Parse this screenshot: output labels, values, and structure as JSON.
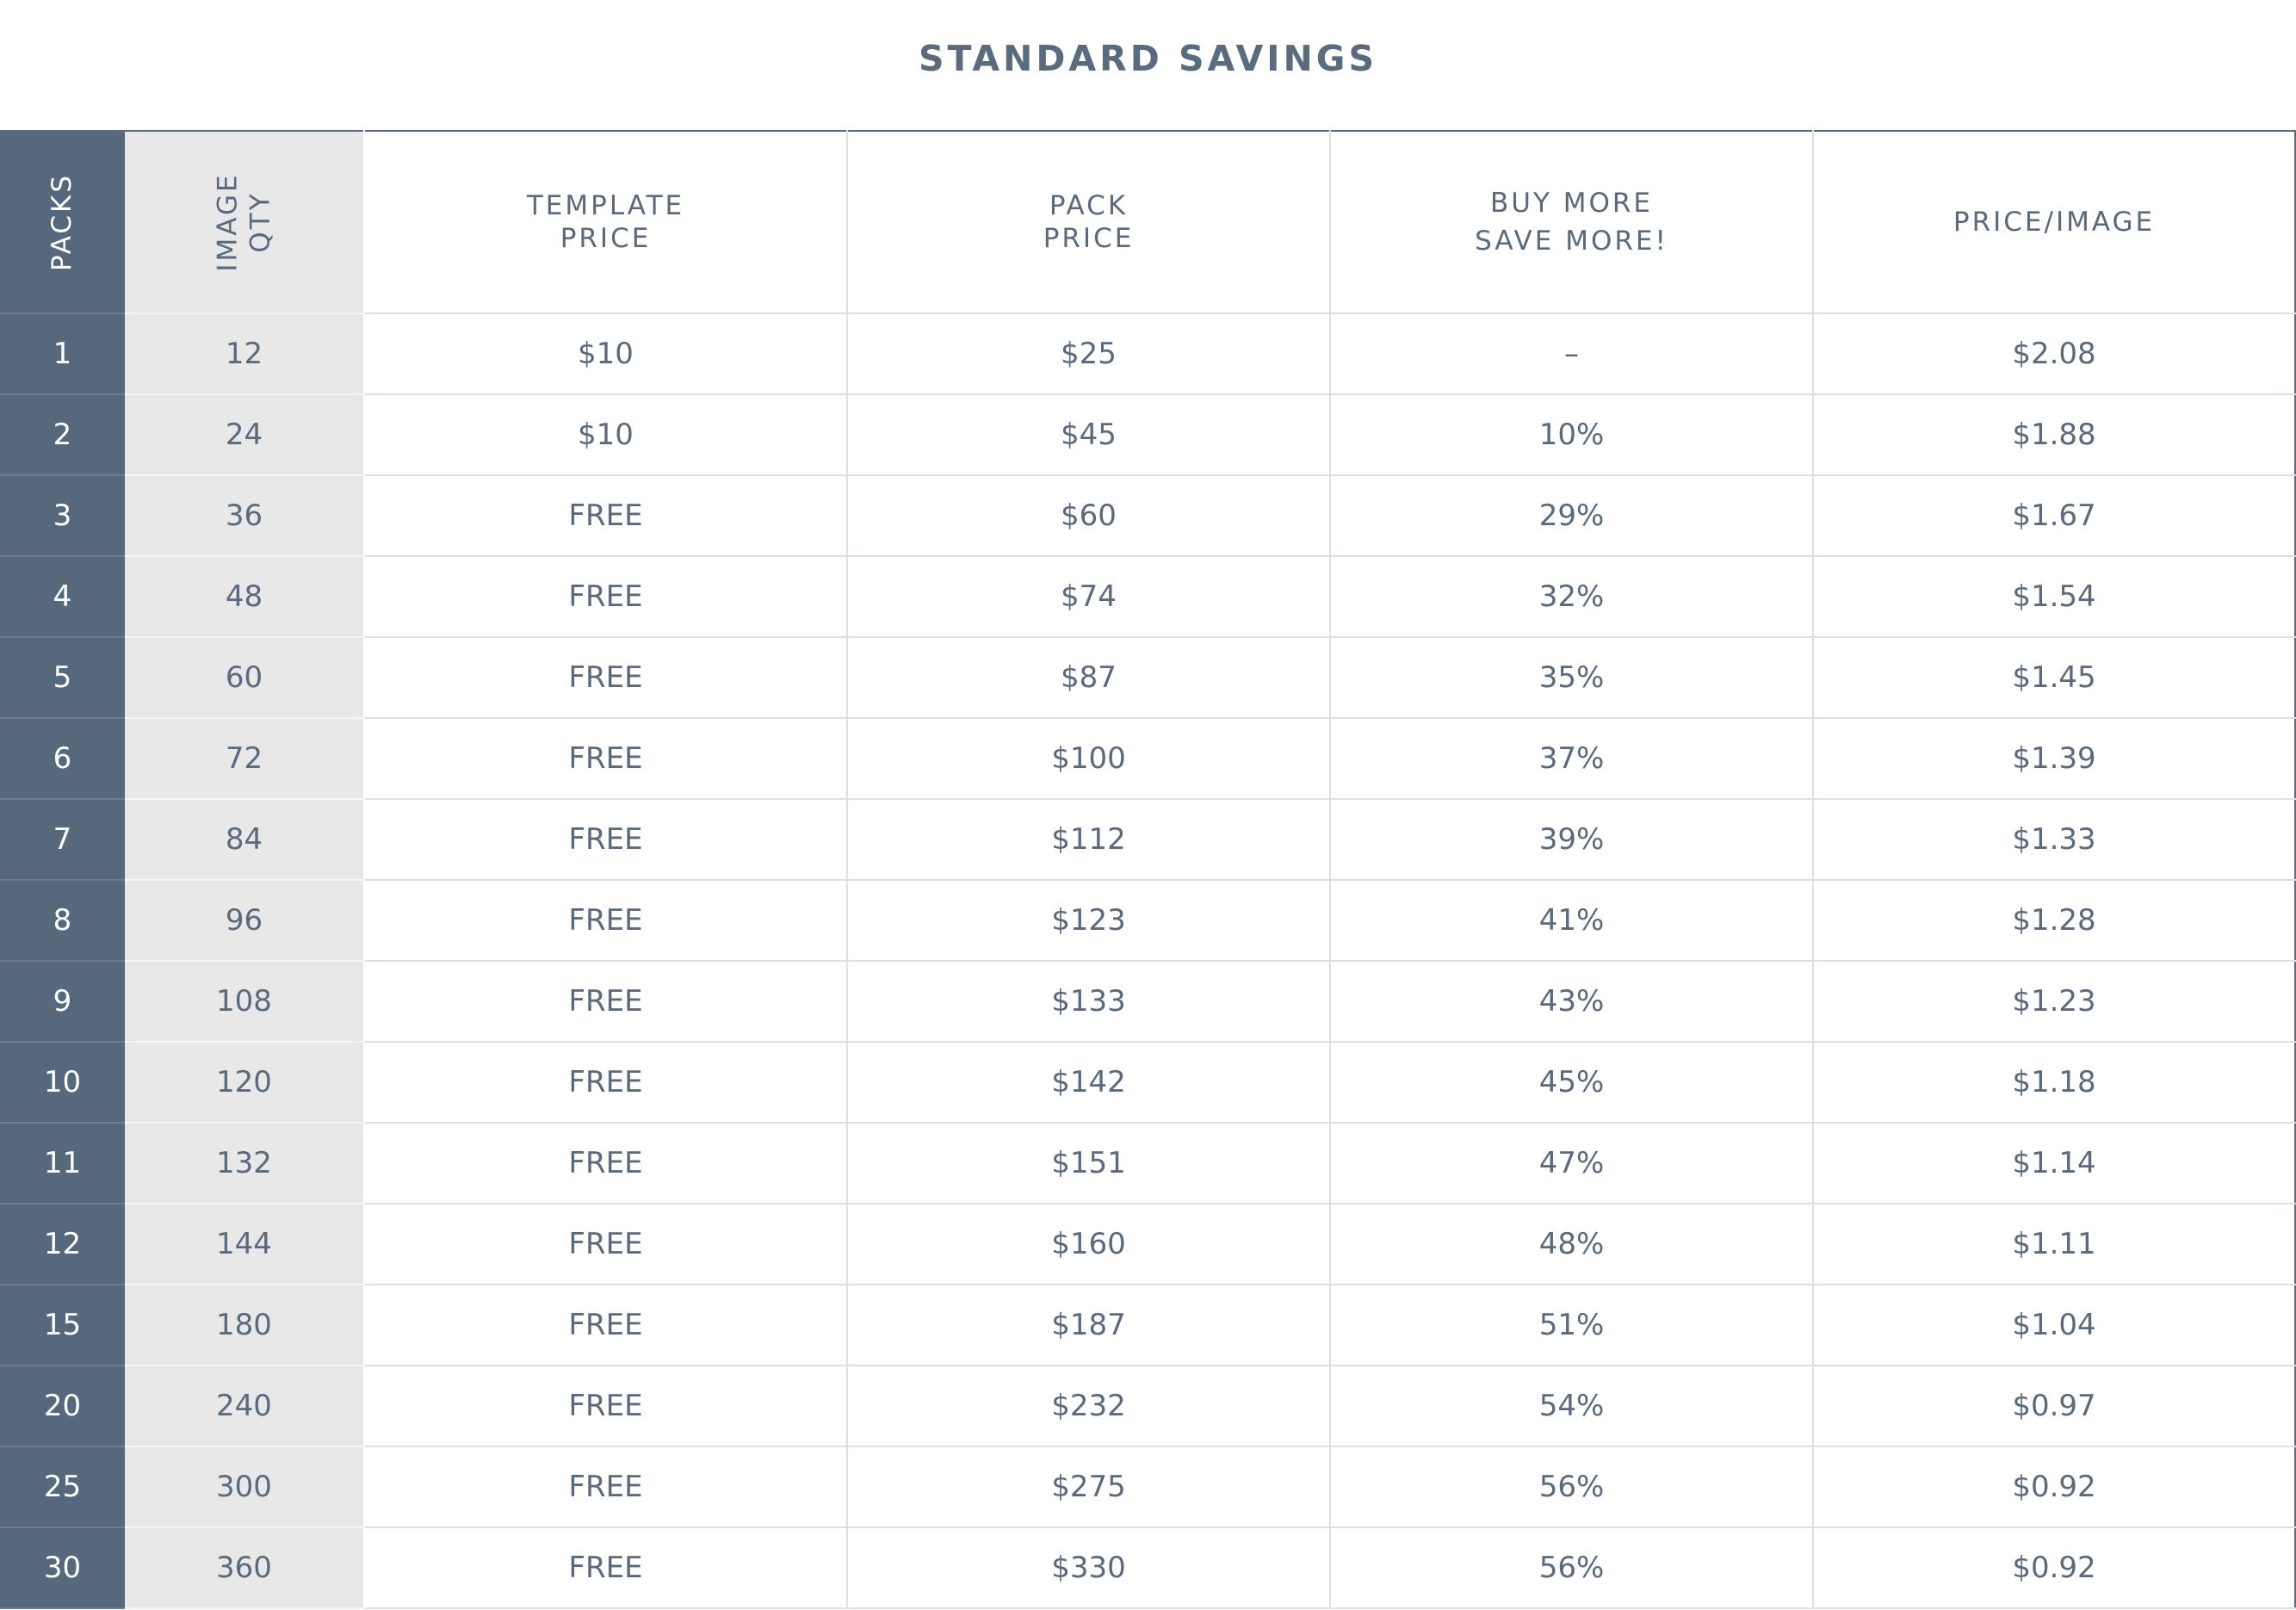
{
  "title": "STANDARD SAVINGS",
  "headers": {
    "packs": "PACKS",
    "image_qty_line1": "IMAGE",
    "image_qty_line2": "QTY",
    "template_price_line1": "TEMPLATE",
    "template_price_line2": "PRICE",
    "pack_price_line1": "PACK",
    "pack_price_line2": "PRICE",
    "buy_more_line1": "BUY MORE",
    "buy_more_line2": "SAVE MORE!",
    "price_per_image": "PRICE/IMAGE"
  },
  "colors": {
    "title": "#5b6b7e",
    "packs_column_bg": "#56687b",
    "qty_column_bg": "#e8e8e8",
    "text": "#5a6a7c",
    "grid": "#dcdfe3"
  },
  "rows": [
    {
      "packs": "1",
      "image_qty": "12",
      "template_price": "$10",
      "pack_price": "$25",
      "savings": "–",
      "price_per_image": "$2.08"
    },
    {
      "packs": "2",
      "image_qty": "24",
      "template_price": "$10",
      "pack_price": "$45",
      "savings": "10%",
      "price_per_image": "$1.88"
    },
    {
      "packs": "3",
      "image_qty": "36",
      "template_price": "FREE",
      "pack_price": "$60",
      "savings": "29%",
      "price_per_image": "$1.67"
    },
    {
      "packs": "4",
      "image_qty": "48",
      "template_price": "FREE",
      "pack_price": "$74",
      "savings": "32%",
      "price_per_image": "$1.54"
    },
    {
      "packs": "5",
      "image_qty": "60",
      "template_price": "FREE",
      "pack_price": "$87",
      "savings": "35%",
      "price_per_image": "$1.45"
    },
    {
      "packs": "6",
      "image_qty": "72",
      "template_price": "FREE",
      "pack_price": "$100",
      "savings": "37%",
      "price_per_image": "$1.39"
    },
    {
      "packs": "7",
      "image_qty": "84",
      "template_price": "FREE",
      "pack_price": "$112",
      "savings": "39%",
      "price_per_image": "$1.33"
    },
    {
      "packs": "8",
      "image_qty": "96",
      "template_price": "FREE",
      "pack_price": "$123",
      "savings": "41%",
      "price_per_image": "$1.28"
    },
    {
      "packs": "9",
      "image_qty": "108",
      "template_price": "FREE",
      "pack_price": "$133",
      "savings": "43%",
      "price_per_image": "$1.23"
    },
    {
      "packs": "10",
      "image_qty": "120",
      "template_price": "FREE",
      "pack_price": "$142",
      "savings": "45%",
      "price_per_image": "$1.18"
    },
    {
      "packs": "11",
      "image_qty": "132",
      "template_price": "FREE",
      "pack_price": "$151",
      "savings": "47%",
      "price_per_image": "$1.14"
    },
    {
      "packs": "12",
      "image_qty": "144",
      "template_price": "FREE",
      "pack_price": "$160",
      "savings": "48%",
      "price_per_image": "$1.11"
    },
    {
      "packs": "15",
      "image_qty": "180",
      "template_price": "FREE",
      "pack_price": "$187",
      "savings": "51%",
      "price_per_image": "$1.04"
    },
    {
      "packs": "20",
      "image_qty": "240",
      "template_price": "FREE",
      "pack_price": "$232",
      "savings": "54%",
      "price_per_image": "$0.97"
    },
    {
      "packs": "25",
      "image_qty": "300",
      "template_price": "FREE",
      "pack_price": "$275",
      "savings": "56%",
      "price_per_image": "$0.92"
    },
    {
      "packs": "30",
      "image_qty": "360",
      "template_price": "FREE",
      "pack_price": "$330",
      "savings": "56%",
      "price_per_image": "$0.92"
    }
  ]
}
